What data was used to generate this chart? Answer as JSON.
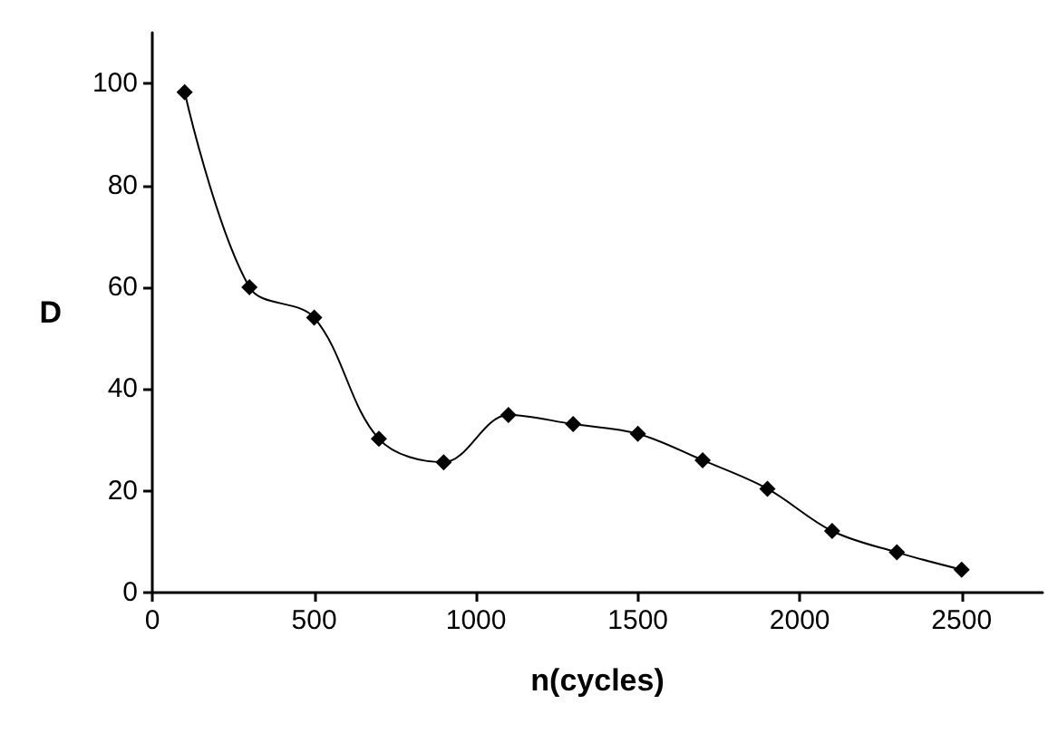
{
  "chart_data": {
    "type": "line",
    "xlabel": "n(cycles)",
    "ylabel": "D",
    "x": [
      100,
      300,
      500,
      700,
      900,
      1100,
      1300,
      1500,
      1700,
      1900,
      2100,
      2300,
      2500
    ],
    "series": [
      {
        "color": "#000000",
        "values": [
          98.3,
          60,
          54,
          30.2,
          25.6,
          34.9,
          33.1,
          31.2,
          26,
          20.4,
          12.1,
          7.9,
          4.5
        ]
      }
    ],
    "xlim": [
      0,
      2750
    ],
    "xticks": [
      0,
      500,
      1000,
      1500,
      2000,
      2500
    ],
    "ylim": [
      0,
      110
    ],
    "yticks": [
      0,
      20,
      40,
      60,
      80,
      100
    ],
    "grid": false,
    "marker": "diamond",
    "line_style": "solid"
  }
}
